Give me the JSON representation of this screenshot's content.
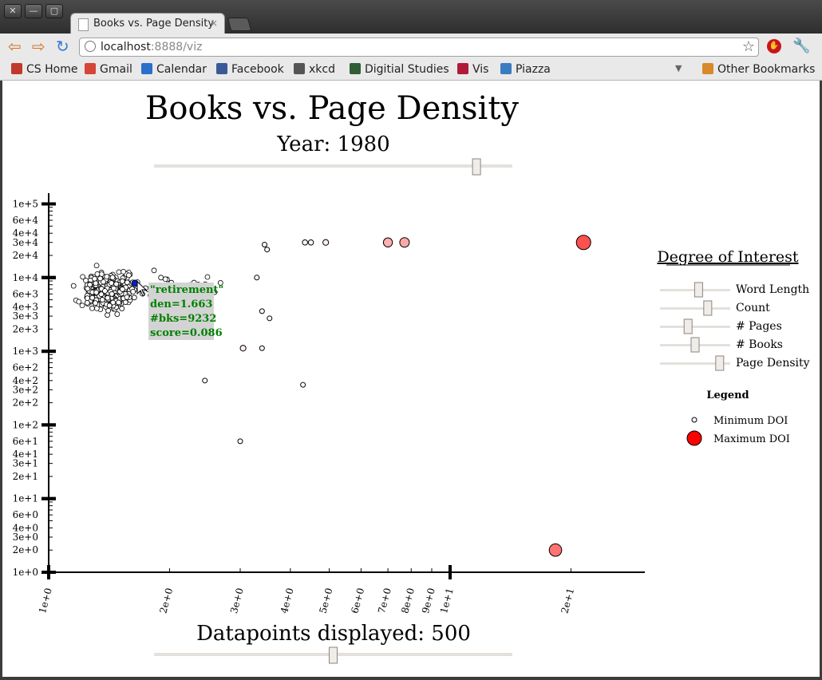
{
  "window": {
    "tab_title": "Books vs. Page Density",
    "url_host": "localhost",
    "url_rest": ":8888/viz",
    "buttons": {
      "close": "✕",
      "minimize": "—",
      "maximize": "▢"
    }
  },
  "bookmarks": [
    {
      "label": "CS Home",
      "color": "#c0392b"
    },
    {
      "label": "Gmail",
      "color": "#d44638"
    },
    {
      "label": "Calendar",
      "color": "#2a6fc9"
    },
    {
      "label": "Facebook",
      "color": "#3b5998"
    },
    {
      "label": "xkcd",
      "color": "#555555"
    },
    {
      "label": "Digitial Studies",
      "color": "#2e5d36"
    },
    {
      "label": "Vis",
      "color": "#b0193a"
    },
    {
      "label": "Piazza",
      "color": "#3b7bbf"
    }
  ],
  "other_bookmarks": "Other Bookmarks",
  "page": {
    "title": "Books vs. Page Density",
    "year_label": "Year: 1980",
    "year_slider_value": 0.9,
    "datapoints_label": "Datapoints displayed: 500",
    "datapoints_slider_value": 0.5
  },
  "doi_panel": {
    "title": "Degree of Interest",
    "sliders": [
      {
        "label": "Word Length",
        "value": 0.55
      },
      {
        "label": "Count",
        "value": 0.68
      },
      {
        "label": "# Pages",
        "value": 0.4
      },
      {
        "label": "# Books",
        "value": 0.5
      },
      {
        "label": "Page Density",
        "value": 0.85
      }
    ],
    "legend_title": "Legend",
    "legend_min": "Minimum DOI",
    "legend_max": "Maximum DOI",
    "min_color": "#ffffff",
    "max_color": "#ff0000"
  },
  "tooltip": {
    "word": "\"retirement\"",
    "den": "den=1.663",
    "bks": "#bks=9232",
    "score": "score=0.086"
  },
  "chart_data": {
    "type": "scatter",
    "title": "Books vs. Page Density",
    "x_scale": "log",
    "y_scale": "log",
    "x_ticks": [
      "1e+0",
      "2e+0",
      "3e+0",
      "4e+0",
      "5e+0",
      "6e+0",
      "7e+0",
      "8e+0",
      "9e+0",
      "1e+1",
      "2e+1"
    ],
    "y_ticks": [
      "1e+0",
      "2e+0",
      "3e+0",
      "4e+0",
      "6e+0",
      "1e+1",
      "2e+1",
      "3e+1",
      "4e+1",
      "6e+1",
      "1e+2",
      "2e+2",
      "3e+2",
      "4e+2",
      "6e+2",
      "1e+3",
      "2e+3",
      "3e+3",
      "4e+3",
      "6e+3",
      "1e+4",
      "2e+4",
      "3e+4",
      "4e+4",
      "6e+4",
      "1e+5"
    ],
    "xlim": [
      1,
      28
    ],
    "ylim": [
      1,
      100000
    ],
    "highlighted": {
      "x": 1.663,
      "y": 9232
    },
    "points": [
      {
        "x": 21.5,
        "y": 30000,
        "doi": 1.0
      },
      {
        "x": 18.3,
        "y": 2,
        "doi": 0.8
      },
      {
        "x": 7.7,
        "y": 30000,
        "doi": 0.5
      },
      {
        "x": 7.0,
        "y": 30000,
        "doi": 0.45
      },
      {
        "x": 4.9,
        "y": 30000,
        "doi": 0.1
      },
      {
        "x": 4.5,
        "y": 30000,
        "doi": 0.05
      },
      {
        "x": 4.35,
        "y": 30000,
        "doi": 0.05
      },
      {
        "x": 4.3,
        "y": 350,
        "doi": 0
      },
      {
        "x": 3.0,
        "y": 60,
        "doi": 0
      },
      {
        "x": 2.45,
        "y": 400,
        "doi": 0
      },
      {
        "x": 3.05,
        "y": 1100,
        "doi": 0.1
      },
      {
        "x": 3.4,
        "y": 1100,
        "doi": 0
      },
      {
        "x": 3.55,
        "y": 2800,
        "doi": 0
      },
      {
        "x": 3.4,
        "y": 3500,
        "doi": 0
      },
      {
        "x": 3.45,
        "y": 28000,
        "doi": 0
      },
      {
        "x": 3.5,
        "y": 24000,
        "doi": 0
      },
      {
        "x": 3.3,
        "y": 10000,
        "doi": 0
      }
    ]
  }
}
